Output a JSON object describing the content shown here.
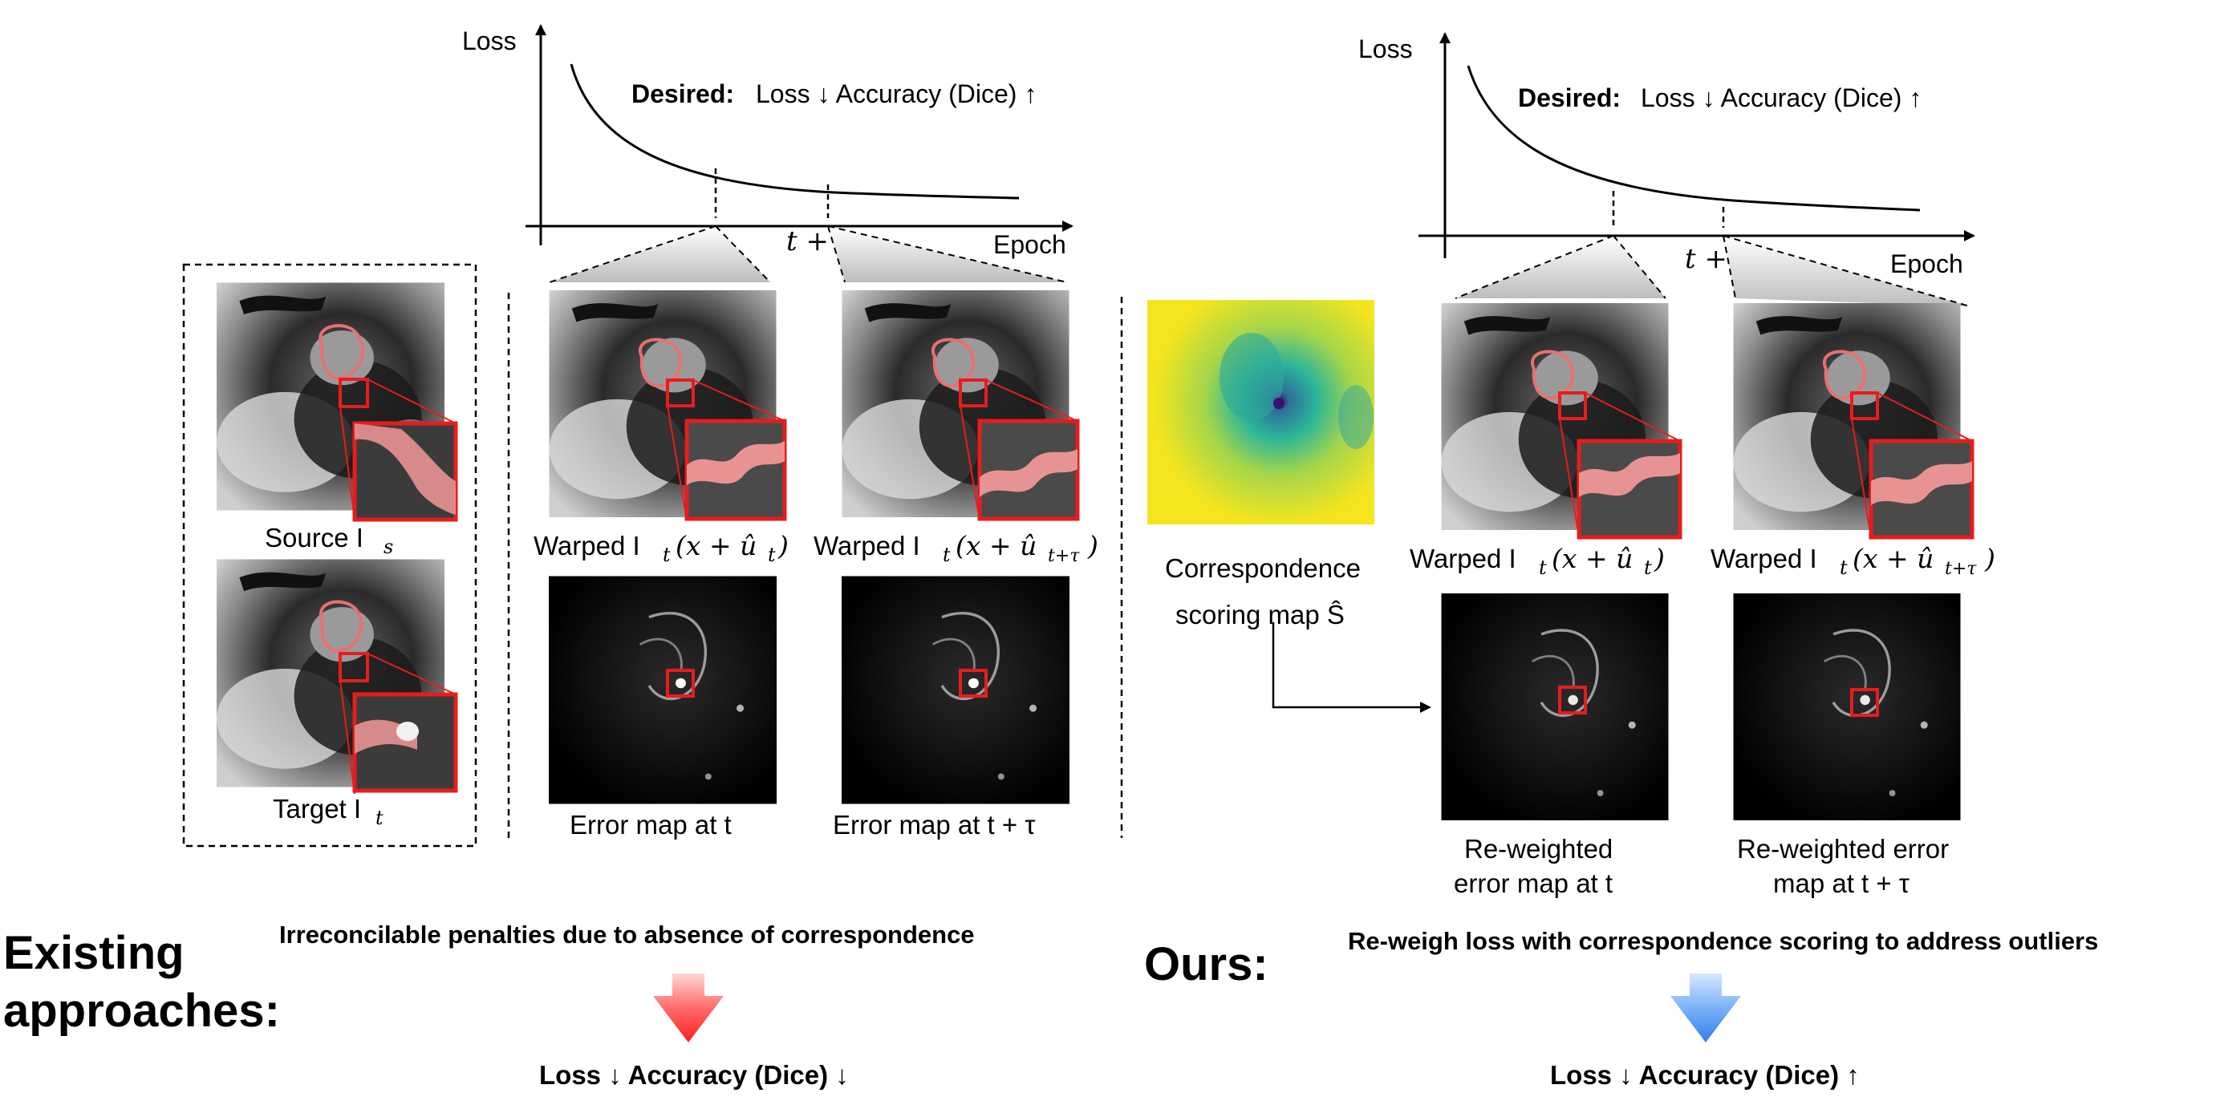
{
  "colors": {
    "highlight_red": "#e81c1c",
    "arrow_red": "#ff2a2a",
    "arrow_blue": "#3e8cf0",
    "contour_pink": "#e8706f"
  },
  "left_panel": {
    "plot": {
      "ylabel": "Loss",
      "xlabel": "Epoch",
      "desired_bold": "Desired:",
      "desired_rest": "Loss ↓ Accuracy (Dice) ↑",
      "tick_t": "t",
      "tick_t_tau": "t + τ"
    },
    "source_label": "Source I",
    "source_sub": "s",
    "target_label": "Target I",
    "target_sub": "t",
    "warped_t": "Warped I",
    "warped_t_args": "(x + û",
    "warped_t_sub": "t",
    "warped_tau": "Warped I",
    "warped_tau_args": "(x + û",
    "warped_tau_sub": "t+τ",
    "error_t": "Error map at t",
    "error_tau": "Error map at t + τ",
    "heading_line1": "Existing",
    "heading_line2": "approaches:",
    "statement": "Irreconcilable penalties due to absence of correspondence",
    "outcome": "Loss ↓ Accuracy (Dice) ↓"
  },
  "right_panel": {
    "plot": {
      "ylabel": "Loss",
      "xlabel": "Epoch",
      "desired_bold": "Desired:",
      "desired_rest": "Loss ↓ Accuracy (Dice) ↑",
      "tick_t": "t",
      "tick_t_tau": "t + τ"
    },
    "score_line1": "Correspondence",
    "score_line2": "scoring map Ŝ",
    "warped_t": "Warped I",
    "warped_t_args": "(x + û",
    "warped_t_sub": "t",
    "warped_tau": "Warped I",
    "warped_tau_args": "(x + û",
    "warped_tau_sub": "t+τ",
    "rew_t_line1": "Re-weighted",
    "rew_t_line2": "error map at t",
    "rew_tau_line1": "Re-weighted error",
    "rew_tau_line2": "map at t + τ",
    "heading": "Ours:",
    "statement": "Re-weigh loss with correspondence scoring to address outliers",
    "outcome": "Loss ↓ Accuracy (Dice) ↑"
  }
}
